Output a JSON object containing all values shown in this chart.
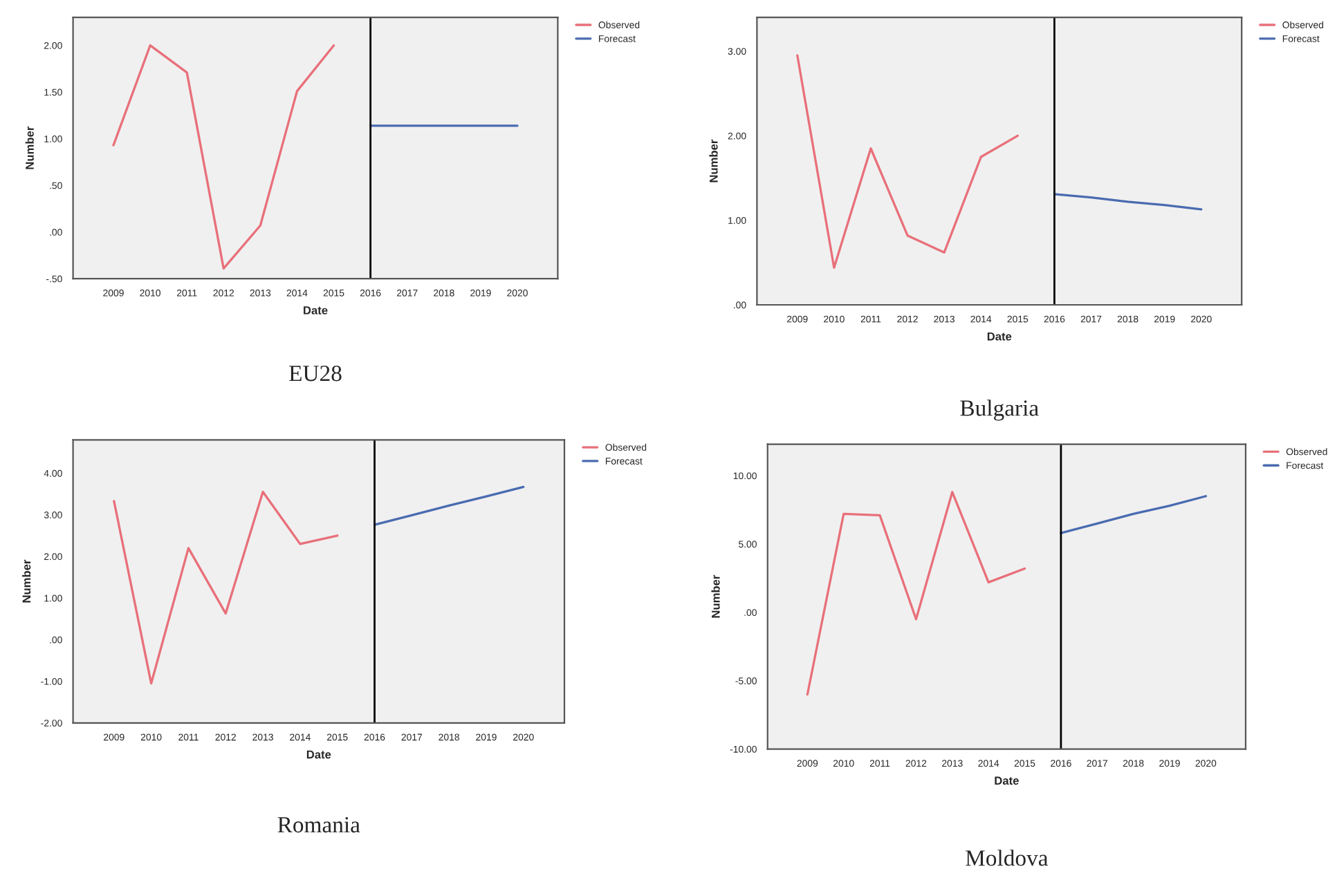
{
  "chart_data": [
    {
      "type": "line",
      "title": "EU28",
      "xlabel": "Date",
      "ylabel": "Number",
      "legend": "top right",
      "grid": false,
      "xlim": [
        2007.9,
        2021.1
      ],
      "xticks": [
        2009,
        2010,
        2011,
        2012,
        2013,
        2014,
        2015,
        2016,
        2017,
        2018,
        2019,
        2020
      ],
      "ylim": [
        -0.5,
        2.3
      ],
      "yticks": [
        {
          "value": -0.5,
          "label": "-.50"
        },
        {
          "value": 0,
          "label": ".00"
        },
        {
          "value": 0.5,
          "label": ".50"
        },
        {
          "value": 1,
          "label": "1.00"
        },
        {
          "value": 1.5,
          "label": "1.50"
        },
        {
          "value": 2,
          "label": "2.00"
        }
      ],
      "ref_lines": [
        {
          "axis": "x",
          "value": 2016,
          "color": "#000000"
        }
      ],
      "series": [
        {
          "name": "Observed",
          "color": "#e8707a",
          "x": [
            2009,
            2010,
            2011,
            2012,
            2013,
            2014,
            2015
          ],
          "values": [
            0.93,
            2.0,
            1.71,
            -0.39,
            0.07,
            1.51,
            2.0
          ]
        },
        {
          "name": "Forecast",
          "color": "#4a6bb0",
          "x": [
            2016,
            2017,
            2018,
            2019,
            2020
          ],
          "values": [
            1.14,
            1.14,
            1.14,
            1.14,
            1.14
          ]
        }
      ]
    },
    {
      "type": "line",
      "title": "Bulgaria",
      "xlabel": "Date",
      "ylabel": "Number",
      "legend": "top right",
      "grid": false,
      "xlim": [
        2007.9,
        2021.1
      ],
      "xticks": [
        2009,
        2010,
        2011,
        2012,
        2013,
        2014,
        2015,
        2016,
        2017,
        2018,
        2019,
        2020
      ],
      "ylim": [
        0,
        3.4
      ],
      "yticks": [
        {
          "value": 0,
          "label": ".00"
        },
        {
          "value": 1,
          "label": "1.00"
        },
        {
          "value": 2,
          "label": "2.00"
        },
        {
          "value": 3,
          "label": "3.00"
        }
      ],
      "ref_lines": [
        {
          "axis": "x",
          "value": 2016,
          "color": "#000000"
        }
      ],
      "series": [
        {
          "name": "Observed",
          "color": "#e8707a",
          "x": [
            2009,
            2010,
            2011,
            2012,
            2013,
            2014,
            2015
          ],
          "values": [
            2.95,
            0.44,
            1.85,
            0.82,
            0.62,
            1.75,
            2.0
          ]
        },
        {
          "name": "Forecast",
          "color": "#4a6bb0",
          "x": [
            2016,
            2017,
            2018,
            2019,
            2020
          ],
          "values": [
            1.31,
            1.27,
            1.22,
            1.18,
            1.13
          ]
        }
      ]
    },
    {
      "type": "line",
      "title": "Romania",
      "xlabel": "Date",
      "ylabel": "Number",
      "legend": "top right",
      "grid": false,
      "xlim": [
        2007.9,
        2021.1
      ],
      "xticks": [
        2009,
        2010,
        2011,
        2012,
        2013,
        2014,
        2015,
        2016,
        2017,
        2018,
        2019,
        2020
      ],
      "ylim": [
        -2,
        4.8
      ],
      "yticks": [
        {
          "value": -2,
          "label": "-2.00"
        },
        {
          "value": -1,
          "label": "-1.00"
        },
        {
          "value": 0,
          "label": ".00"
        },
        {
          "value": 1,
          "label": "1.00"
        },
        {
          "value": 2,
          "label": "2.00"
        },
        {
          "value": 3,
          "label": "3.00"
        },
        {
          "value": 4,
          "label": "4.00"
        }
      ],
      "ref_lines": [
        {
          "axis": "x",
          "value": 2016,
          "color": "#000000"
        }
      ],
      "series": [
        {
          "name": "Observed",
          "color": "#e8707a",
          "x": [
            2009,
            2010,
            2011,
            2012,
            2013,
            2014,
            2015
          ],
          "values": [
            3.33,
            -1.05,
            2.2,
            0.63,
            3.55,
            2.3,
            2.5
          ]
        },
        {
          "name": "Forecast",
          "color": "#4a6bb0",
          "x": [
            2016,
            2017,
            2018,
            2019,
            2020
          ],
          "values": [
            2.76,
            2.99,
            3.22,
            3.44,
            3.67
          ]
        }
      ]
    },
    {
      "type": "line",
      "title": "Moldova",
      "xlabel": "Date",
      "ylabel": "Number",
      "legend": "top right",
      "grid": false,
      "xlim": [
        2007.9,
        2021.1
      ],
      "xticks": [
        2009,
        2010,
        2011,
        2012,
        2013,
        2014,
        2015,
        2016,
        2017,
        2018,
        2019,
        2020
      ],
      "ylim": [
        -10,
        12.3
      ],
      "yticks": [
        {
          "value": -10,
          "label": "-10.00"
        },
        {
          "value": -5,
          "label": "-5.00"
        },
        {
          "value": 0,
          "label": ".00"
        },
        {
          "value": 5,
          "label": "5.00"
        },
        {
          "value": 10,
          "label": "10.00"
        }
      ],
      "ref_lines": [
        {
          "axis": "x",
          "value": 2016,
          "color": "#000000"
        }
      ],
      "series": [
        {
          "name": "Observed",
          "color": "#e8707a",
          "x": [
            2009,
            2010,
            2011,
            2012,
            2013,
            2014,
            2015
          ],
          "values": [
            -6.0,
            7.2,
            7.1,
            -0.5,
            8.8,
            2.2,
            3.2
          ]
        },
        {
          "name": "Forecast",
          "color": "#4a6bb0",
          "x": [
            2016,
            2017,
            2018,
            2019,
            2020
          ],
          "values": [
            5.8,
            6.5,
            7.2,
            7.8,
            8.5
          ]
        }
      ]
    }
  ]
}
